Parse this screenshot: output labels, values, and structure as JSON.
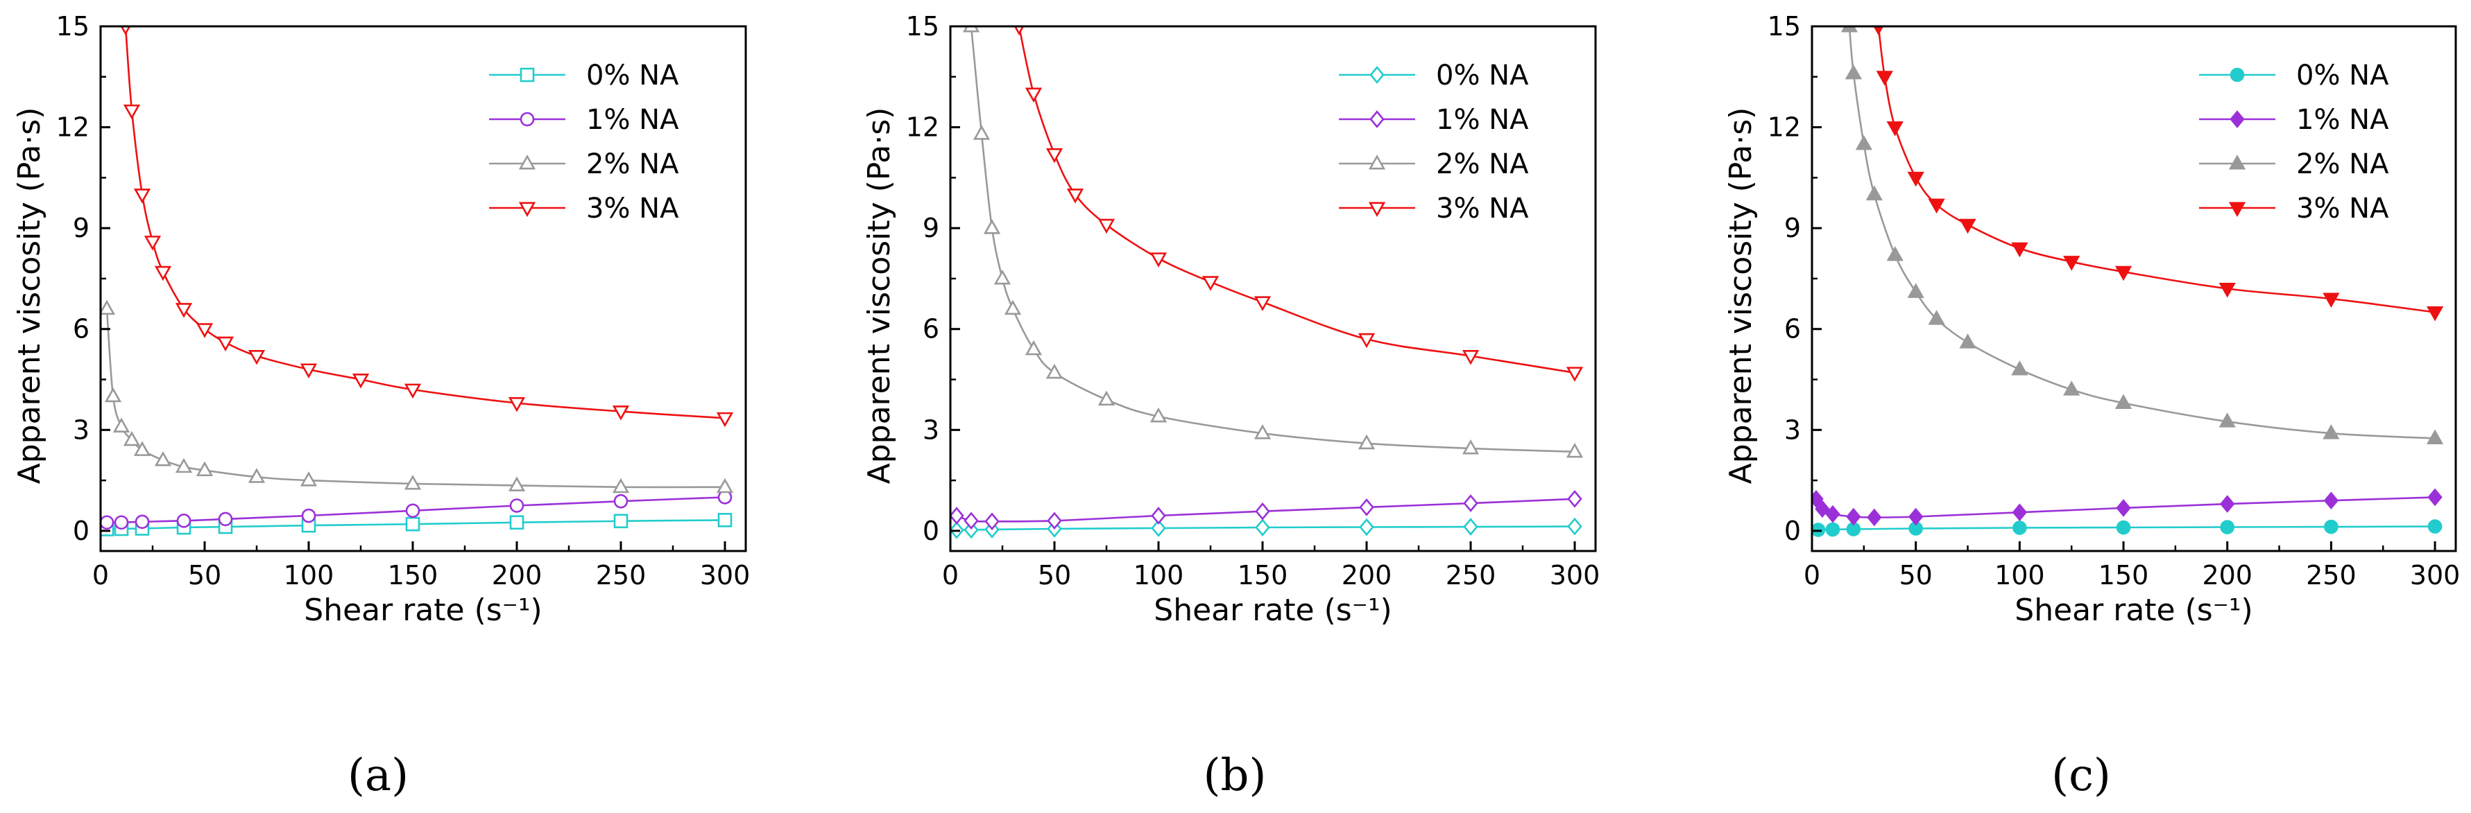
{
  "chart_data": [
    {
      "type": "line",
      "panel_label": "(a)",
      "xlabel": "Shear rate (s⁻¹)",
      "ylabel": "Apparent viscosity (Pa·s)",
      "xlim": [
        0,
        310
      ],
      "ylim": [
        -0.6,
        15
      ],
      "xticks": [
        "0",
        "50",
        "100",
        "150",
        "200",
        "250",
        "300"
      ],
      "yticks": [
        "0",
        "3",
        "6",
        "9",
        "12",
        "15"
      ],
      "legend_position": "top-right",
      "marker_style": "open",
      "series": [
        {
          "name": "0% NA",
          "color": "#22cccc",
          "marker": "square",
          "x": [
            3,
            10,
            20,
            40,
            60,
            100,
            150,
            200,
            250,
            300
          ],
          "y": [
            0.05,
            0.06,
            0.07,
            0.1,
            0.12,
            0.16,
            0.2,
            0.25,
            0.29,
            0.32
          ]
        },
        {
          "name": "1% NA",
          "color": "#9b30d9",
          "marker": "circle",
          "x": [
            3,
            10,
            20,
            40,
            60,
            100,
            150,
            200,
            250,
            300
          ],
          "y": [
            0.25,
            0.25,
            0.27,
            0.3,
            0.35,
            0.45,
            0.6,
            0.75,
            0.88,
            1.0
          ]
        },
        {
          "name": "2% NA",
          "color": "#999999",
          "marker": "triangle-up",
          "x": [
            3,
            6,
            10,
            15,
            20,
            30,
            40,
            50,
            75,
            100,
            150,
            200,
            250,
            300
          ],
          "y": [
            6.6,
            4.0,
            3.1,
            2.7,
            2.4,
            2.1,
            1.9,
            1.8,
            1.6,
            1.5,
            1.4,
            1.35,
            1.3,
            1.3
          ]
        },
        {
          "name": "3% NA",
          "color": "#ee1111",
          "marker": "triangle-down",
          "x": [
            12,
            15,
            20,
            25,
            30,
            40,
            50,
            60,
            75,
            100,
            125,
            150,
            200,
            250,
            300
          ],
          "y": [
            15,
            12.5,
            10.0,
            8.6,
            7.7,
            6.6,
            6.0,
            5.6,
            5.2,
            4.8,
            4.5,
            4.2,
            3.8,
            3.55,
            3.35
          ]
        }
      ]
    },
    {
      "type": "line",
      "panel_label": "(b)",
      "xlabel": "Shear rate (s⁻¹)",
      "ylabel": "Apparent viscosity (Pa·s)",
      "xlim": [
        0,
        310
      ],
      "ylim": [
        -0.6,
        15
      ],
      "xticks": [
        "0",
        "50",
        "100",
        "150",
        "200",
        "250",
        "300"
      ],
      "yticks": [
        "0",
        "3",
        "6",
        "9",
        "12",
        "15"
      ],
      "legend_position": "top-right",
      "marker_style": "open",
      "series": [
        {
          "name": "0% NA",
          "color": "#22cccc",
          "marker": "diamond",
          "x": [
            3,
            10,
            20,
            50,
            100,
            150,
            200,
            250,
            300
          ],
          "y": [
            0.02,
            0.03,
            0.04,
            0.06,
            0.08,
            0.1,
            0.11,
            0.12,
            0.13
          ]
        },
        {
          "name": "1% NA",
          "color": "#9b30d9",
          "marker": "diamond",
          "x": [
            3,
            10,
            20,
            50,
            100,
            150,
            200,
            250,
            300
          ],
          "y": [
            0.45,
            0.3,
            0.28,
            0.3,
            0.45,
            0.58,
            0.7,
            0.82,
            0.95
          ]
        },
        {
          "name": "2% NA",
          "color": "#999999",
          "marker": "triangle-up",
          "x": [
            10,
            15,
            20,
            25,
            30,
            40,
            50,
            75,
            100,
            150,
            200,
            250,
            300
          ],
          "y": [
            15,
            11.8,
            9.0,
            7.5,
            6.6,
            5.4,
            4.7,
            3.9,
            3.4,
            2.9,
            2.6,
            2.45,
            2.35
          ]
        },
        {
          "name": "3% NA",
          "color": "#ee1111",
          "marker": "triangle-down",
          "x": [
            33,
            40,
            50,
            60,
            75,
            100,
            125,
            150,
            200,
            250,
            300
          ],
          "y": [
            15,
            13.0,
            11.2,
            10.0,
            9.1,
            8.1,
            7.4,
            6.8,
            5.7,
            5.2,
            4.7
          ]
        }
      ]
    },
    {
      "type": "line",
      "panel_label": "(c)",
      "xlabel": "Shear rate (s⁻¹)",
      "ylabel": "Apparent viscosity (Pa·s)",
      "xlim": [
        0,
        310
      ],
      "ylim": [
        -0.6,
        15
      ],
      "xticks": [
        "0",
        "50",
        "100",
        "150",
        "200",
        "250",
        "300"
      ],
      "yticks": [
        "0",
        "3",
        "6",
        "9",
        "12",
        "15"
      ],
      "legend_position": "top-right",
      "marker_style": "filled",
      "series": [
        {
          "name": "0% NA",
          "color": "#22cccc",
          "marker": "circle",
          "x": [
            3,
            10,
            20,
            50,
            100,
            150,
            200,
            250,
            300
          ],
          "y": [
            0.03,
            0.04,
            0.05,
            0.07,
            0.09,
            0.1,
            0.11,
            0.12,
            0.13
          ]
        },
        {
          "name": "1% NA",
          "color": "#9b30d9",
          "marker": "diamond",
          "x": [
            2,
            5,
            10,
            20,
            30,
            50,
            100,
            150,
            200,
            250,
            300
          ],
          "y": [
            0.95,
            0.65,
            0.5,
            0.42,
            0.4,
            0.42,
            0.55,
            0.68,
            0.8,
            0.9,
            1.0
          ]
        },
        {
          "name": "2% NA",
          "color": "#999999",
          "marker": "triangle-up",
          "x": [
            18,
            20,
            25,
            30,
            40,
            50,
            60,
            75,
            100,
            125,
            150,
            200,
            250,
            300
          ],
          "y": [
            15,
            13.6,
            11.5,
            10.0,
            8.2,
            7.1,
            6.3,
            5.6,
            4.8,
            4.2,
            3.8,
            3.25,
            2.9,
            2.75
          ]
        },
        {
          "name": "3% NA",
          "color": "#ee1111",
          "marker": "triangle-down",
          "x": [
            32,
            35,
            40,
            50,
            60,
            75,
            100,
            125,
            150,
            200,
            250,
            300
          ],
          "y": [
            15,
            13.5,
            12.0,
            10.5,
            9.7,
            9.1,
            8.4,
            8.0,
            7.7,
            7.2,
            6.9,
            6.5
          ]
        }
      ]
    }
  ]
}
